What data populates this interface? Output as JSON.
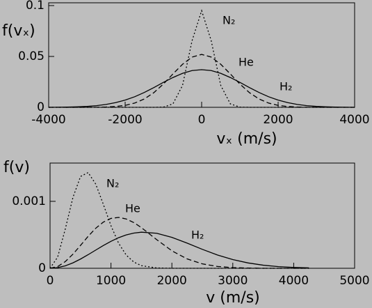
{
  "chart_data": [
    {
      "type": "line",
      "ylabel": "f(vₓ)",
      "xlabel": "vₓ (m/s)",
      "xlim": [
        -4000,
        4000
      ],
      "xticks": [
        -4000,
        -2000,
        0,
        2000,
        4000
      ],
      "ylim": [
        0,
        0.1
      ],
      "yticks": [
        0,
        0.05,
        0.1
      ],
      "x": [
        -4000,
        -3750,
        -3500,
        -3250,
        -3000,
        -2750,
        -2500,
        -2250,
        -2000,
        -1750,
        -1500,
        -1250,
        -1000,
        -750,
        -500,
        -250,
        0,
        250,
        500,
        750,
        1000,
        1250,
        1500,
        1750,
        2000,
        2250,
        2500,
        2750,
        3000,
        3250,
        3500,
        3750,
        4000
      ],
      "series": [
        {
          "name": "N₂",
          "color": "#000000",
          "dash": "dotted",
          "values": [
            0,
            0,
            0,
            0,
            0,
            0,
            0,
            0,
            0,
            0,
            0,
            0,
            0.0002,
            0.0034,
            0.0215,
            0.0655,
            0.095,
            0.0655,
            0.0215,
            0.0034,
            0.0002,
            0,
            0,
            0,
            0,
            0,
            0,
            0,
            0,
            0,
            0,
            0,
            0
          ]
        },
        {
          "name": "He",
          "color": "#000000",
          "dash": "dashed",
          "values": [
            0,
            0,
            0,
            0,
            0,
            0.0001,
            0.0003,
            0.0008,
            0.0019,
            0.0042,
            0.0082,
            0.0144,
            0.0229,
            0.0328,
            0.0423,
            0.0494,
            0.052,
            0.0494,
            0.0423,
            0.0328,
            0.0229,
            0.0144,
            0.0082,
            0.0042,
            0.0019,
            0.0008,
            0.0003,
            0.0001,
            0,
            0,
            0,
            0,
            0
          ]
        },
        {
          "name": "H₂",
          "color": "#000000",
          "dash": "solid",
          "values": [
            0,
            0.0001,
            0.0002,
            0.0005,
            0.0009,
            0.0016,
            0.0028,
            0.0046,
            0.0071,
            0.0104,
            0.0146,
            0.0194,
            0.0245,
            0.0293,
            0.0334,
            0.0361,
            0.037,
            0.0361,
            0.0334,
            0.0293,
            0.0245,
            0.0194,
            0.0146,
            0.0104,
            0.0071,
            0.0046,
            0.0028,
            0.0016,
            0.0009,
            0.0005,
            0.0002,
            0.0001,
            0
          ]
        }
      ]
    },
    {
      "type": "line",
      "ylabel": "f(v)",
      "xlabel": "v (m/s)",
      "xlim": [
        0,
        5000
      ],
      "xticks": [
        0,
        1000,
        2000,
        3000,
        4000,
        5000
      ],
      "ylim": [
        0,
        0.00153
      ],
      "yticks": [
        0,
        0.001
      ],
      "x": [
        0,
        125,
        250,
        375,
        500,
        625,
        750,
        875,
        1000,
        1125,
        1250,
        1375,
        1500,
        1750,
        2000,
        2250,
        2500,
        2750,
        3000,
        3250,
        3500,
        3750,
        4000,
        4250
      ],
      "series": [
        {
          "name": "N₂",
          "color": "#000000",
          "dash": "dotted",
          "values": [
            0,
            0.000168,
            0.000587,
            0.001056,
            0.001371,
            0.00143,
            0.001257,
            0.000954,
            0.000636,
            0.000375,
            0.000197,
            9.3e-05,
            3.9e-05,
            5e-06,
            0,
            0,
            0,
            0,
            0,
            0,
            0,
            0,
            0,
            0
          ]
        },
        {
          "name": "He",
          "color": "#000000",
          "dash": "dashed",
          "values": [
            0,
            2.6e-05,
            0.0001,
            0.00021,
            0.000342,
            0.000477,
            0.000598,
            0.00069,
            0.000745,
            0.00076,
            0.000737,
            0.000683,
            0.000607,
            0.000428,
            0.000261,
            0.00014,
            6.6e-05,
            2.7e-05,
            1e-05,
            3e-06,
            0,
            0,
            0,
            0
          ]
        },
        {
          "name": "H₂",
          "color": "#000000",
          "dash": "solid",
          "values": [
            0,
            1e-05,
            3.7e-05,
            8.1e-05,
            0.000138,
            0.000203,
            0.000272,
            0.00034,
            0.000403,
            0.000457,
            0.000498,
            0.000526,
            0.000539,
            0.000523,
            0.000462,
            0.000376,
            0.000283,
            0.000198,
            0.00013,
            8e-05,
            4.6e-05,
            2.5e-05,
            1.3e-05,
            6e-06
          ]
        }
      ]
    }
  ]
}
